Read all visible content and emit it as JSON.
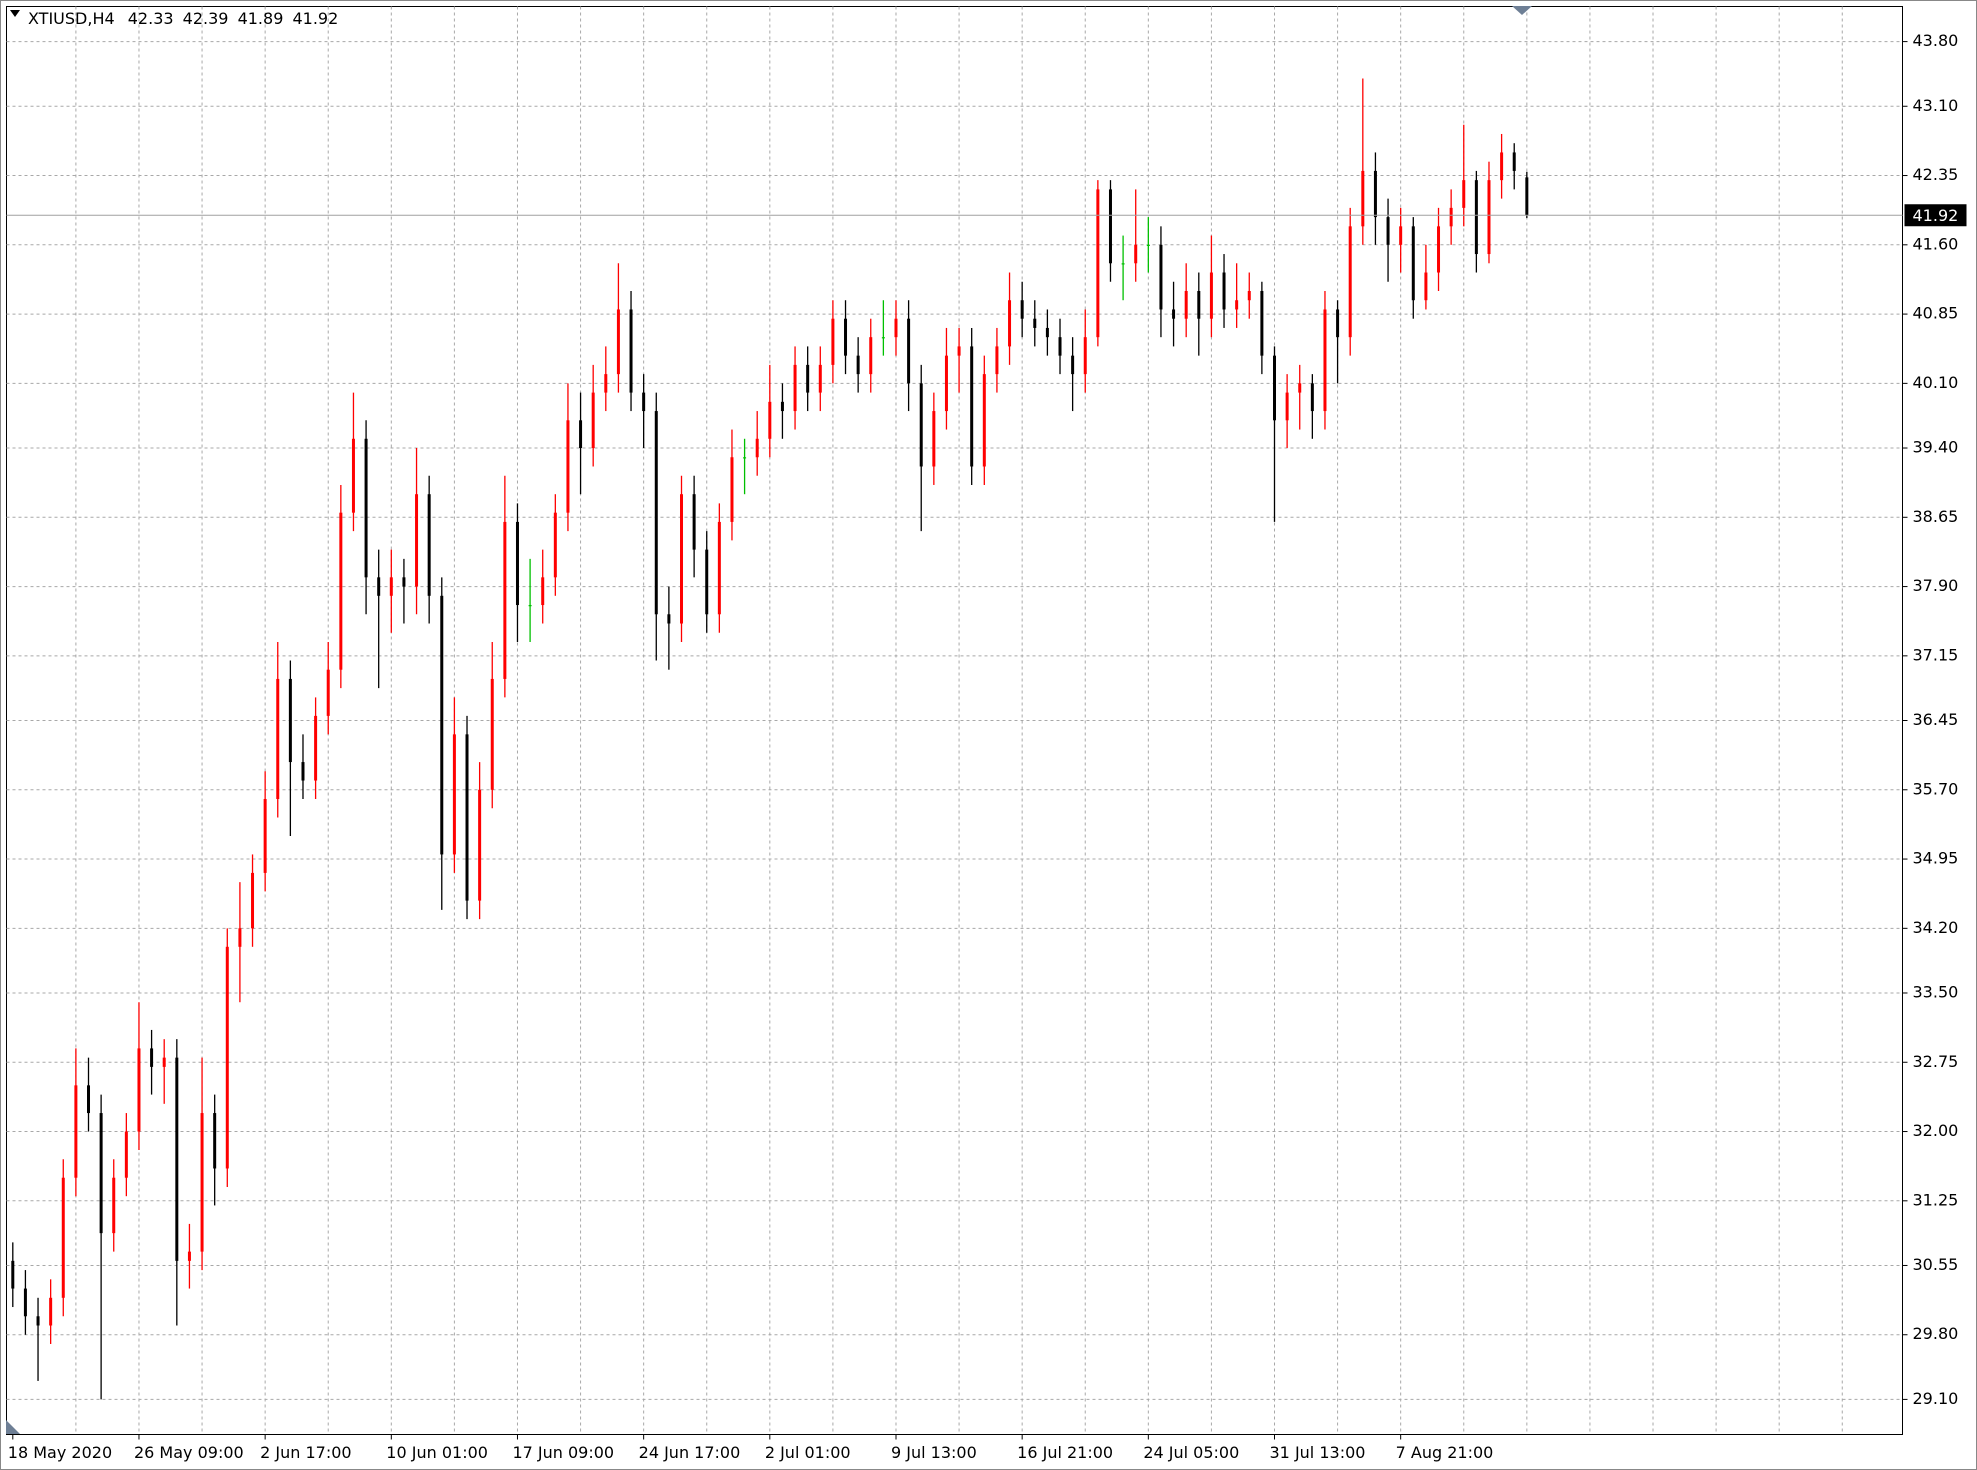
{
  "chart_data": {
    "type": "candlestick",
    "title": "XTIUSD,H4",
    "header_ohlc": [
      42.33,
      42.39,
      41.89,
      41.92
    ],
    "last_price": 41.92,
    "up_color": "#ff0000",
    "down_color": "#000000",
    "doji_color": "#00c000",
    "grid": true,
    "ylim": [
      28.72,
      44.18
    ],
    "yticks": [
      {
        "value": 29.1,
        "label": "29.10"
      },
      {
        "value": 29.8,
        "label": "29.80"
      },
      {
        "value": 30.55,
        "label": "30.55"
      },
      {
        "value": 31.25,
        "label": "31.25"
      },
      {
        "value": 32.0,
        "label": "32.00"
      },
      {
        "value": 32.75,
        "label": "32.75"
      },
      {
        "value": 33.5,
        "label": "33.50"
      },
      {
        "value": 34.2,
        "label": "34.20"
      },
      {
        "value": 34.95,
        "label": "34.95"
      },
      {
        "value": 35.7,
        "label": "35.70"
      },
      {
        "value": 36.45,
        "label": "36.45"
      },
      {
        "value": 37.15,
        "label": "37.15"
      },
      {
        "value": 37.9,
        "label": "37.90"
      },
      {
        "value": 38.65,
        "label": "38.65"
      },
      {
        "value": 39.4,
        "label": "39.40"
      },
      {
        "value": 40.1,
        "label": "40.10"
      },
      {
        "value": 40.85,
        "label": "40.85"
      },
      {
        "value": 41.6,
        "label": "41.60"
      },
      {
        "value": 42.35,
        "label": "42.35"
      },
      {
        "value": 43.1,
        "label": "43.10"
      },
      {
        "value": 43.8,
        "label": "43.80"
      }
    ],
    "categories": [
      "18 May 2020",
      null,
      null,
      null,
      null,
      null,
      null,
      null,
      null,
      null,
      "26 May 09:00",
      null,
      null,
      null,
      null,
      null,
      null,
      null,
      null,
      null,
      "2 Jun 17:00",
      null,
      null,
      null,
      null,
      null,
      null,
      null,
      null,
      null,
      "10 Jun 01:00",
      null,
      null,
      null,
      null,
      null,
      null,
      null,
      null,
      null,
      "17 Jun 09:00",
      null,
      null,
      null,
      null,
      null,
      null,
      null,
      null,
      null,
      "24 Jun 17:00",
      null,
      null,
      null,
      null,
      null,
      null,
      null,
      null,
      null,
      "2 Jul 01:00",
      null,
      null,
      null,
      null,
      null,
      null,
      null,
      null,
      null,
      "9 Jul 13:00",
      null,
      null,
      null,
      null,
      null,
      null,
      null,
      null,
      null,
      "16 Jul 21:00",
      null,
      null,
      null,
      null,
      null,
      null,
      null,
      null,
      null,
      "24 Jul 05:00",
      null,
      null,
      null,
      null,
      null,
      null,
      null,
      null,
      null,
      "31 Jul 13:00",
      null,
      null,
      null,
      null,
      null,
      null,
      null,
      null,
      null,
      "7 Aug 21:00",
      null,
      null,
      null,
      null,
      null,
      null,
      null,
      null,
      null,
      null
    ],
    "open": [
      30.6,
      30.3,
      30.0,
      29.9,
      30.2,
      31.5,
      32.5,
      32.2,
      30.9,
      31.5,
      32.0,
      32.9,
      32.7,
      32.8,
      30.6,
      30.7,
      32.2,
      31.6,
      34.0,
      34.2,
      34.8,
      35.6,
      36.9,
      36.0,
      35.8,
      36.5,
      37.0,
      38.7,
      39.5,
      38.0,
      37.8,
      38.0,
      37.9,
      38.9,
      37.8,
      35.0,
      36.3,
      34.5,
      35.7,
      36.9,
      38.6,
      37.7,
      37.7,
      38.0,
      38.7,
      39.7,
      39.4,
      40.0,
      40.2,
      40.9,
      40.0,
      39.8,
      37.6,
      37.5,
      38.9,
      38.3,
      37.6,
      38.6,
      39.3,
      39.3,
      39.5,
      39.9,
      39.8,
      40.3,
      40.0,
      40.3,
      40.8,
      40.4,
      40.2,
      40.6,
      40.6,
      40.8,
      40.1,
      39.2,
      39.8,
      40.4,
      40.5,
      39.2,
      40.2,
      40.5,
      41.0,
      40.8,
      40.7,
      40.6,
      40.4,
      40.2,
      40.6,
      42.2,
      41.4,
      41.4,
      41.6,
      41.6,
      40.9,
      40.8,
      41.1,
      40.8,
      41.3,
      40.9,
      41.0,
      41.1,
      40.4,
      39.7,
      40.0,
      40.1,
      39.8,
      40.9,
      40.6,
      41.8,
      42.4,
      41.9,
      41.6,
      41.8,
      41.0,
      41.3,
      41.8,
      42.0,
      42.3,
      41.5,
      42.3,
      42.6,
      42.33
    ],
    "high": [
      30.8,
      30.5,
      30.2,
      30.4,
      31.7,
      32.9,
      32.8,
      32.4,
      31.7,
      32.2,
      33.4,
      33.1,
      33.0,
      33.0,
      31.0,
      32.8,
      32.4,
      34.2,
      34.7,
      35.0,
      35.9,
      37.3,
      37.1,
      36.3,
      36.7,
      37.3,
      39.0,
      40.0,
      39.7,
      38.3,
      38.3,
      38.2,
      39.4,
      39.1,
      38.0,
      36.7,
      36.5,
      36.0,
      37.3,
      39.1,
      38.8,
      38.2,
      38.3,
      38.9,
      40.1,
      40.0,
      40.3,
      40.5,
      41.4,
      41.1,
      40.2,
      40.0,
      37.9,
      39.1,
      39.1,
      38.5,
      38.8,
      39.6,
      39.5,
      39.8,
      40.3,
      40.1,
      40.5,
      40.5,
      40.5,
      41.0,
      41.0,
      40.6,
      40.8,
      41.0,
      41.0,
      41.0,
      40.3,
      40.0,
      40.7,
      40.7,
      40.7,
      40.4,
      40.7,
      41.3,
      41.2,
      41.0,
      40.9,
      40.8,
      40.6,
      40.9,
      42.3,
      42.3,
      41.7,
      42.2,
      41.9,
      41.8,
      41.2,
      41.4,
      41.3,
      41.7,
      41.5,
      41.4,
      41.3,
      41.2,
      40.5,
      40.2,
      40.3,
      40.2,
      41.1,
      41.0,
      42.0,
      43.4,
      42.6,
      42.1,
      42.0,
      41.9,
      41.6,
      42.0,
      42.2,
      42.9,
      42.4,
      42.5,
      42.8,
      42.7,
      42.39
    ],
    "low": [
      30.1,
      29.8,
      29.3,
      29.7,
      30.0,
      31.3,
      32.0,
      29.1,
      30.7,
      31.3,
      31.8,
      32.4,
      32.3,
      29.9,
      30.3,
      30.5,
      31.2,
      31.4,
      33.4,
      34.0,
      34.6,
      35.4,
      35.2,
      35.6,
      35.6,
      36.3,
      36.8,
      38.5,
      37.6,
      36.8,
      37.4,
      37.5,
      37.6,
      37.5,
      34.4,
      34.8,
      34.3,
      34.3,
      35.5,
      36.7,
      37.3,
      37.3,
      37.5,
      37.8,
      38.5,
      38.9,
      39.2,
      39.8,
      40.0,
      39.8,
      39.4,
      37.1,
      37.0,
      37.3,
      38.0,
      37.4,
      37.4,
      38.4,
      38.9,
      39.1,
      39.3,
      39.5,
      39.6,
      39.8,
      39.8,
      40.1,
      40.2,
      40.0,
      40.0,
      40.4,
      40.4,
      39.8,
      38.5,
      39.0,
      39.6,
      40.0,
      39.0,
      39.0,
      40.0,
      40.3,
      40.6,
      40.5,
      40.4,
      40.2,
      39.8,
      40.0,
      40.5,
      41.2,
      41.0,
      41.2,
      41.3,
      40.6,
      40.5,
      40.6,
      40.4,
      40.6,
      40.7,
      40.7,
      40.8,
      40.2,
      38.6,
      39.4,
      39.6,
      39.5,
      39.6,
      40.1,
      40.4,
      41.6,
      41.6,
      41.2,
      41.3,
      40.8,
      40.9,
      41.1,
      41.6,
      41.8,
      41.3,
      41.4,
      42.1,
      42.2,
      41.89
    ],
    "close": [
      30.3,
      30.0,
      29.9,
      30.2,
      31.5,
      32.5,
      32.2,
      30.9,
      31.5,
      32.0,
      32.9,
      32.7,
      32.8,
      30.6,
      30.7,
      32.2,
      31.6,
      34.0,
      34.2,
      34.8,
      35.6,
      36.9,
      36.0,
      35.8,
      36.5,
      37.0,
      38.7,
      39.5,
      38.0,
      37.8,
      38.0,
      37.9,
      38.9,
      37.8,
      35.0,
      36.3,
      34.5,
      35.7,
      36.9,
      38.6,
      37.7,
      37.7,
      38.0,
      38.7,
      39.7,
      39.4,
      40.0,
      40.2,
      40.9,
      40.0,
      39.8,
      37.6,
      37.5,
      38.9,
      38.3,
      37.6,
      38.6,
      39.3,
      39.3,
      39.5,
      39.9,
      39.8,
      40.3,
      40.0,
      40.3,
      40.8,
      40.4,
      40.2,
      40.6,
      40.6,
      40.8,
      40.1,
      39.2,
      39.8,
      40.4,
      40.5,
      39.2,
      40.2,
      40.5,
      41.0,
      40.8,
      40.7,
      40.6,
      40.4,
      40.2,
      40.6,
      42.2,
      41.4,
      41.4,
      41.6,
      41.6,
      40.9,
      40.8,
      41.1,
      40.8,
      41.3,
      40.9,
      41.0,
      41.1,
      40.4,
      39.7,
      40.0,
      40.1,
      39.8,
      40.9,
      40.6,
      41.8,
      42.4,
      41.9,
      41.6,
      41.8,
      41.0,
      41.3,
      41.8,
      42.0,
      42.3,
      41.5,
      42.3,
      42.6,
      42.4,
      41.92
    ]
  }
}
